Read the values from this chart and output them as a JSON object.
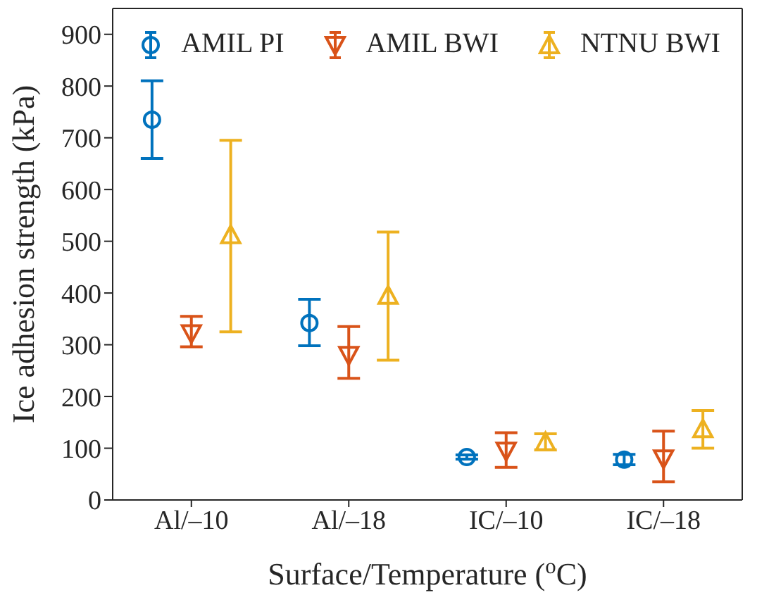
{
  "chart_data": {
    "type": "scatter",
    "xlabel": "Surface/Temperature ($^{o}$C)",
    "ylabel": "Ice adhesion strength (kPa)",
    "categories": [
      "Al/–10",
      "Al/–18",
      "IC/–10",
      "IC/–18"
    ],
    "ylim": [
      0,
      950
    ],
    "yticks": [
      0,
      100,
      200,
      300,
      400,
      500,
      600,
      700,
      800,
      900
    ],
    "legend": "top",
    "series": [
      {
        "name": "AMIL PI",
        "color": "#0072bd",
        "marker": "circle",
        "values": [
          735,
          342,
          83,
          78
        ],
        "errors": [
          [
            660,
            810
          ],
          [
            298,
            388
          ],
          [
            79,
            87
          ],
          [
            68,
            88
          ]
        ]
      },
      {
        "name": "AMIL BWI",
        "color": "#d95319",
        "marker": "triangle-down",
        "values": [
          322,
          280,
          95,
          80
        ],
        "errors": [
          [
            296,
            355
          ],
          [
            235,
            335
          ],
          [
            63,
            130
          ],
          [
            35,
            133
          ]
        ]
      },
      {
        "name": "NTNU BWI",
        "color": "#edb120",
        "marker": "triangle",
        "values": [
          512,
          395,
          112,
          137
        ],
        "errors": [
          [
            325,
            695
          ],
          [
            270,
            518
          ],
          [
            97,
            128
          ],
          [
            100,
            173
          ]
        ]
      }
    ]
  }
}
